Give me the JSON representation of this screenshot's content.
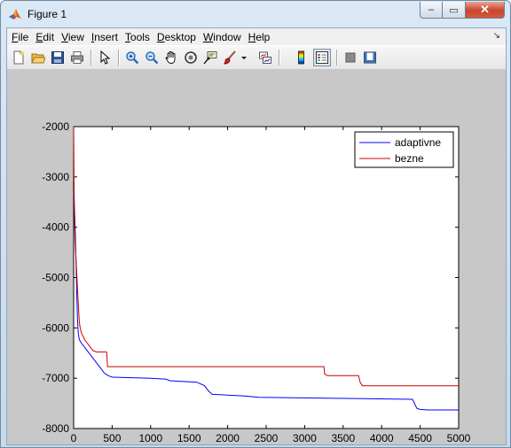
{
  "window": {
    "title": "Figure 1",
    "minimize_label": "–",
    "maximize_label": "▭",
    "close_label": "✕"
  },
  "menu": [
    {
      "u": "F",
      "rest": "ile"
    },
    {
      "u": "E",
      "rest": "dit"
    },
    {
      "u": "V",
      "rest": "iew"
    },
    {
      "u": "I",
      "rest": "nsert"
    },
    {
      "u": "T",
      "rest": "ools"
    },
    {
      "u": "D",
      "rest": "esktop"
    },
    {
      "u": "W",
      "rest": "indow"
    },
    {
      "u": "H",
      "rest": "elp"
    }
  ],
  "toolbar_icons": [
    "new-figure-icon",
    "open-file-icon",
    "save-icon",
    "print-icon",
    "edit-plot-arrow-icon",
    "zoom-in-icon",
    "zoom-out-icon",
    "pan-hand-icon",
    "rotate-3d-icon",
    "data-cursor-icon",
    "brush-icon",
    "brush-dropdown-icon",
    "link-plot-icon",
    "colorbar-icon",
    "legend-icon",
    "hide-plot-tools-icon",
    "show-plot-tools-icon"
  ],
  "chart_data": {
    "type": "line",
    "title": "",
    "xlabel": "",
    "ylabel": "",
    "xlim": [
      0,
      5000
    ],
    "ylim": [
      -8000,
      -2000
    ],
    "xticks": [
      0,
      500,
      1000,
      1500,
      2000,
      2500,
      3000,
      3500,
      4000,
      4500,
      5000
    ],
    "yticks": [
      -2000,
      -3000,
      -4000,
      -5000,
      -6000,
      -7000,
      -8000
    ],
    "legend_position": "top-right",
    "grid": false,
    "series": [
      {
        "name": "adaptivne",
        "color": "#0000ff",
        "x": [
          0,
          10,
          20,
          30,
          40,
          50,
          60,
          70,
          80,
          100,
          150,
          200,
          250,
          300,
          350,
          400,
          450,
          500,
          1000,
          1200,
          1250,
          1600,
          1700,
          1750,
          1800,
          2200,
          2400,
          3400,
          4400,
          4420,
          4440,
          4460,
          4500,
          4600,
          5000
        ],
        "y": [
          -3300,
          -3600,
          -4000,
          -4600,
          -5300,
          -5800,
          -6100,
          -6200,
          -6250,
          -6300,
          -6400,
          -6500,
          -6600,
          -6700,
          -6800,
          -6900,
          -6950,
          -6980,
          -7000,
          -7020,
          -7050,
          -7080,
          -7150,
          -7250,
          -7320,
          -7350,
          -7380,
          -7400,
          -7420,
          -7480,
          -7550,
          -7600,
          -7620,
          -7630,
          -7630
        ]
      },
      {
        "name": "bezne",
        "color": "#cc0000",
        "x": [
          0,
          5,
          10,
          20,
          30,
          40,
          50,
          60,
          70,
          80,
          100,
          150,
          200,
          250,
          300,
          350,
          400,
          430,
          440,
          600,
          3250,
          3260,
          3300,
          3700,
          3720,
          3750,
          5000
        ],
        "y": [
          -2000,
          -3000,
          -3800,
          -4300,
          -4600,
          -4900,
          -5200,
          -5500,
          -5800,
          -5950,
          -6100,
          -6250,
          -6350,
          -6450,
          -6480,
          -6480,
          -6480,
          -6480,
          -6770,
          -6770,
          -6770,
          -6920,
          -6950,
          -6950,
          -7080,
          -7150,
          -7150
        ]
      }
    ]
  }
}
